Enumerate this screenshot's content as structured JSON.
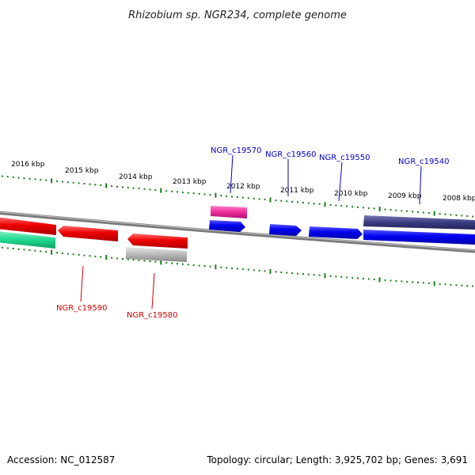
{
  "title": "Rhizobium sp. NGR234, complete genome",
  "footer": {
    "accession": "Accession: NC_012587",
    "topology": "Topology: circular; Length: 3,925,702 bp; Genes: 3,691"
  },
  "kbp_labels": [
    "2016 kbp",
    "2015 kbp",
    "2014 kbp",
    "2013 kbp",
    "2012 kbp",
    "2011 kbp",
    "2010 kbp",
    "2009 kbp",
    "2008 kbp"
  ],
  "gene_labels": {
    "forward": [
      "NGR_c19570",
      "NGR_c19560",
      "NGR_c19550",
      "NGR_c19540"
    ],
    "reverse": [
      "NGR_c19590",
      "NGR_c19580"
    ]
  },
  "colors": {
    "forward_gene": "#0000ee",
    "reverse_gene": "#ee0000",
    "forward_label": "#0000cc",
    "reverse_label": "#cc0000",
    "tick": "#1a7a1a",
    "backbone": "#808080",
    "pseudo_pink": "#ee2b9a",
    "pseudo_navy": "#3a3a80",
    "pseudo_teal": "#20d890",
    "pseudo_grey": "#b8b8b8"
  }
}
